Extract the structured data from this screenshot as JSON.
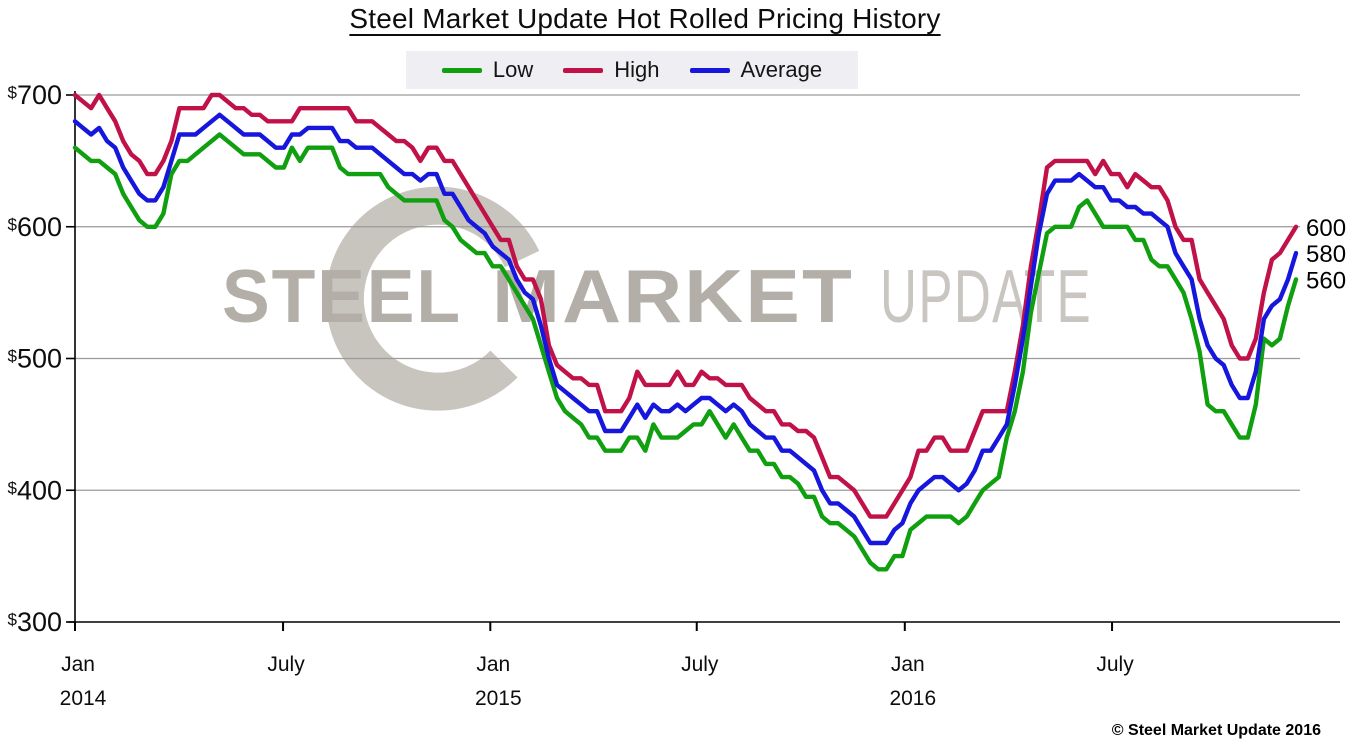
{
  "title": "Steel Market Update Hot Rolled Pricing History",
  "legend": {
    "items": [
      {
        "label": "Low",
        "color": "#0f9f0f"
      },
      {
        "label": "High",
        "color": "#c01248"
      },
      {
        "label": "Average",
        "color": "#1616dc"
      }
    ]
  },
  "watermark": {
    "words": [
      "STEEL",
      "MARKET",
      "UPDATE"
    ],
    "color_dark": "#b3aea7",
    "color_light": "#c9c5c0",
    "swoosh_color": "#c2beb7"
  },
  "copyright": "© Steel Market Update 2016",
  "chart_data": {
    "type": "line",
    "title": "Steel Market Update Hot Rolled Pricing History",
    "x_unit": "week",
    "x_range": [
      "Jan 2014",
      "Dec 2016"
    ],
    "ylim": [
      300,
      700
    ],
    "grid": "horizontal",
    "legend_position": "top-center",
    "yticks": [
      {
        "label": "$700",
        "value": 700
      },
      {
        "label": "$600",
        "value": 600
      },
      {
        "label": "$500",
        "value": 500
      },
      {
        "label": "$400",
        "value": 400
      },
      {
        "label": "$300",
        "value": 300
      }
    ],
    "xticks": [
      {
        "label": "Jan",
        "year": "2014",
        "week": 0
      },
      {
        "label": "July",
        "year": "",
        "week": 25.9
      },
      {
        "label": "Jan",
        "year": "2015",
        "week": 51.7
      },
      {
        "label": "July",
        "year": "",
        "week": 77.4
      },
      {
        "label": "Jan",
        "year": "2016",
        "week": 103.3
      },
      {
        "label": "July",
        "year": "",
        "week": 129.1
      }
    ],
    "end_value_labels": [
      {
        "text": "600",
        "value": 600,
        "series": "High"
      },
      {
        "text": "580",
        "value": 580,
        "series": "Average"
      },
      {
        "text": "560",
        "value": 560,
        "series": "Low"
      }
    ],
    "series": [
      {
        "name": "Low",
        "color": "#0f9f0f",
        "values": [
          660,
          655,
          650,
          650,
          645,
          640,
          625,
          615,
          605,
          600,
          600,
          610,
          640,
          650,
          650,
          655,
          660,
          665,
          670,
          665,
          660,
          655,
          655,
          655,
          650,
          645,
          645,
          660,
          650,
          660,
          660,
          660,
          660,
          645,
          640,
          640,
          640,
          640,
          640,
          630,
          625,
          620,
          620,
          620,
          620,
          620,
          605,
          600,
          590,
          585,
          580,
          580,
          570,
          570,
          560,
          550,
          540,
          530,
          510,
          490,
          470,
          460,
          455,
          450,
          440,
          440,
          430,
          430,
          430,
          440,
          440,
          430,
          450,
          440,
          440,
          440,
          445,
          450,
          450,
          460,
          450,
          440,
          450,
          440,
          430,
          430,
          420,
          420,
          410,
          410,
          405,
          395,
          395,
          380,
          375,
          375,
          370,
          365,
          355,
          345,
          340,
          340,
          350,
          350,
          370,
          375,
          380,
          380,
          380,
          380,
          375,
          380,
          390,
          400,
          405,
          410,
          440,
          460,
          490,
          535,
          565,
          595,
          600,
          600,
          600,
          615,
          620,
          610,
          600,
          600,
          600,
          600,
          590,
          590,
          575,
          570,
          570,
          560,
          550,
          530,
          505,
          465,
          460,
          460,
          450,
          440,
          440,
          465,
          515,
          510,
          515,
          540,
          560
        ]
      },
      {
        "name": "High",
        "color": "#c01248",
        "values": [
          700,
          695,
          690,
          700,
          690,
          680,
          665,
          655,
          650,
          640,
          640,
          650,
          665,
          690,
          690,
          690,
          690,
          700,
          700,
          695,
          690,
          690,
          685,
          685,
          680,
          680,
          680,
          680,
          690,
          690,
          690,
          690,
          690,
          690,
          690,
          680,
          680,
          680,
          675,
          670,
          665,
          665,
          660,
          650,
          660,
          660,
          650,
          650,
          640,
          630,
          620,
          610,
          600,
          590,
          590,
          570,
          560,
          560,
          545,
          510,
          495,
          490,
          485,
          485,
          480,
          480,
          460,
          460,
          460,
          470,
          490,
          480,
          480,
          480,
          480,
          490,
          480,
          480,
          490,
          485,
          485,
          480,
          480,
          480,
          470,
          465,
          460,
          460,
          450,
          450,
          445,
          445,
          440,
          425,
          410,
          410,
          405,
          400,
          390,
          380,
          380,
          380,
          390,
          400,
          410,
          430,
          430,
          440,
          440,
          430,
          430,
          430,
          445,
          460,
          460,
          460,
          460,
          490,
          525,
          570,
          605,
          645,
          650,
          650,
          650,
          650,
          650,
          640,
          650,
          640,
          640,
          630,
          640,
          635,
          630,
          630,
          620,
          600,
          590,
          590,
          560,
          550,
          540,
          530,
          510,
          500,
          500,
          515,
          550,
          575,
          580,
          590,
          600
        ]
      },
      {
        "name": "Average",
        "color": "#1616dc",
        "values": [
          680,
          675,
          670,
          675,
          665,
          660,
          645,
          635,
          625,
          620,
          620,
          630,
          650,
          670,
          670,
          670,
          675,
          680,
          685,
          680,
          675,
          670,
          670,
          670,
          665,
          660,
          660,
          670,
          670,
          675,
          675,
          675,
          675,
          665,
          665,
          660,
          660,
          660,
          655,
          650,
          645,
          640,
          640,
          635,
          640,
          640,
          625,
          625,
          615,
          605,
          600,
          595,
          585,
          580,
          575,
          560,
          550,
          545,
          525,
          500,
          480,
          475,
          470,
          465,
          460,
          460,
          445,
          445,
          445,
          455,
          465,
          455,
          465,
          460,
          460,
          465,
          460,
          465,
          470,
          470,
          465,
          460,
          465,
          460,
          450,
          445,
          440,
          440,
          430,
          430,
          425,
          420,
          415,
          400,
          390,
          390,
          385,
          380,
          370,
          360,
          360,
          360,
          370,
          375,
          390,
          400,
          405,
          410,
          410,
          405,
          400,
          405,
          415,
          430,
          430,
          440,
          450,
          480,
          515,
          555,
          595,
          625,
          635,
          635,
          635,
          640,
          635,
          630,
          630,
          620,
          620,
          615,
          615,
          610,
          610,
          605,
          600,
          580,
          570,
          560,
          530,
          510,
          500,
          495,
          480,
          470,
          470,
          490,
          530,
          540,
          545,
          560,
          580
        ]
      }
    ]
  }
}
